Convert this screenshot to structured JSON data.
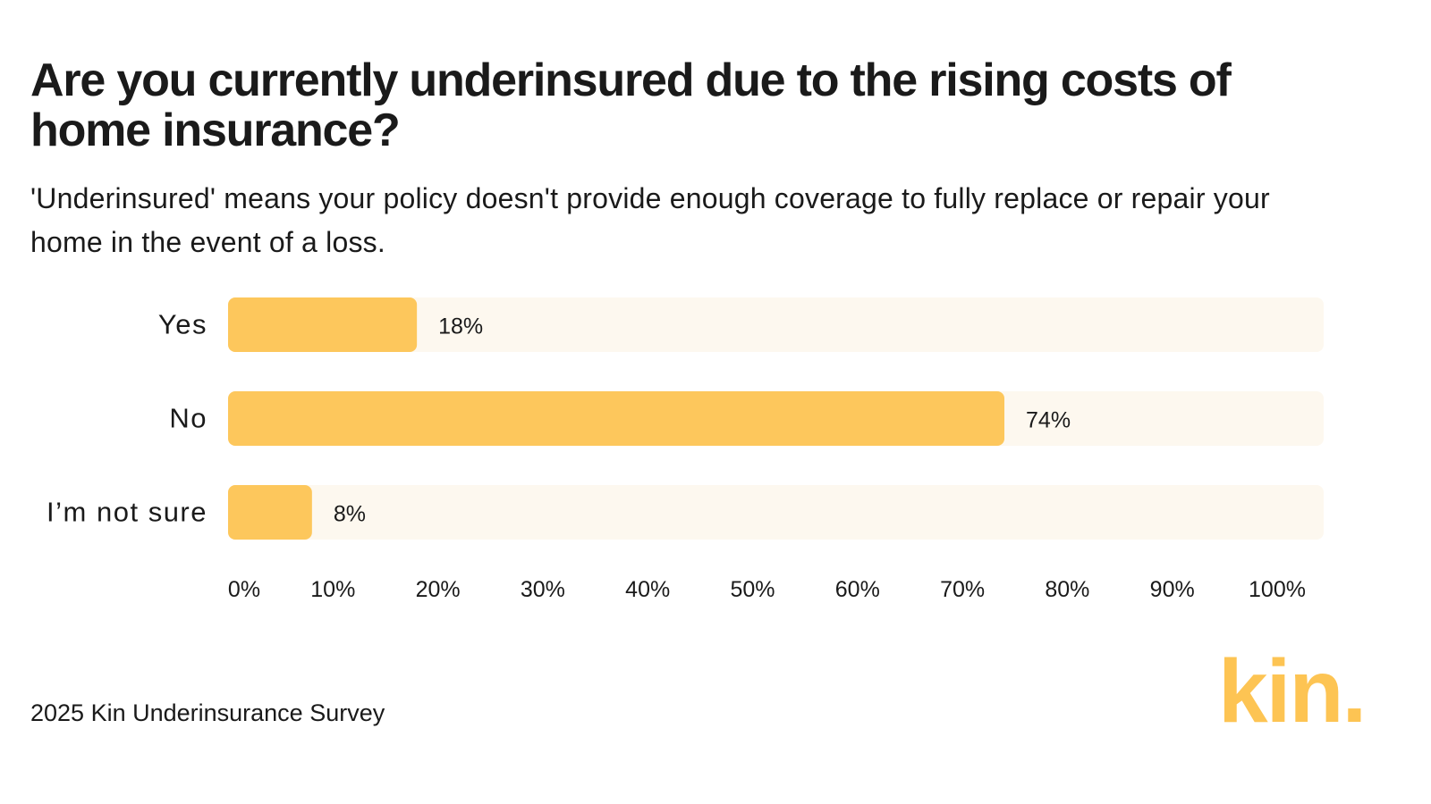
{
  "header": {
    "title": "Are you currently underinsured due to the rising costs of home insurance?",
    "subtitle": "'Underinsured' means your policy doesn't provide enough coverage to fully replace or repair your home in the event of a loss."
  },
  "footer": {
    "source": "2025 Kin Underinsurance Survey"
  },
  "brand": {
    "logo_text": "kin.",
    "color": "#fdc453"
  },
  "colors": {
    "bar": "#fdc75c",
    "track": "#fdf8ef",
    "text": "#1a1a1a"
  },
  "chart_data": {
    "type": "bar",
    "orientation": "horizontal",
    "categories": [
      "Yes",
      "No",
      "I’m not sure"
    ],
    "values": [
      18,
      74,
      8
    ],
    "data_labels": [
      "18%",
      "74%",
      "8%"
    ],
    "xlim": [
      0,
      100
    ],
    "x_ticks": [
      0,
      10,
      20,
      30,
      40,
      50,
      60,
      70,
      80,
      90,
      100
    ],
    "x_tick_labels": [
      "0%",
      "10%",
      "20%",
      "30%",
      "40%",
      "50%",
      "60%",
      "70%",
      "80%",
      "90%",
      "100%"
    ],
    "grid": false,
    "legend": "none"
  }
}
